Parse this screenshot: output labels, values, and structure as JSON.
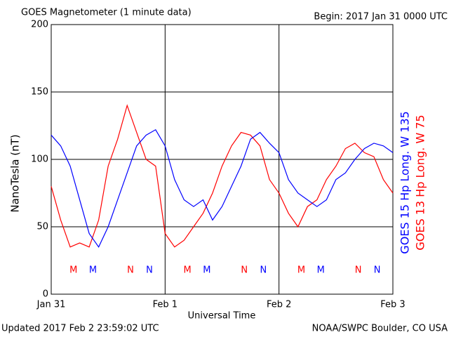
{
  "chart_data": {
    "type": "line",
    "title": "GOES Magnetometer (1 minute data)",
    "subtitle": "Begin:  2017 Jan 31 0000 UTC",
    "y_label": "NanoTesla (nT)",
    "x_label": "Universal Time",
    "footer_left": "Updated 2017 Feb  2 23:59:02 UTC",
    "footer_right": "NOAA/SWPC Boulder, CO USA",
    "x": [
      0,
      2,
      4,
      6,
      8,
      10,
      12,
      14,
      16,
      18,
      20,
      22,
      24,
      26,
      28,
      30,
      32,
      34,
      36,
      38,
      40,
      42,
      44,
      46,
      48,
      50,
      52,
      54,
      56,
      58,
      60,
      62,
      64,
      66,
      68,
      70,
      72
    ],
    "series": [
      {
        "name": "GOES 13 Hp  Long. W 75",
        "color": "#ff0000",
        "values": [
          80,
          55,
          35,
          38,
          35,
          55,
          95,
          115,
          140,
          120,
          100,
          95,
          45,
          35,
          40,
          50,
          60,
          75,
          95,
          110,
          120,
          118,
          110,
          85,
          75,
          60,
          50,
          65,
          70,
          85,
          95,
          108,
          112,
          105,
          102,
          85,
          75
        ]
      },
      {
        "name": "GOES 15 Hp  Long. W 135",
        "color": "#0000ff",
        "values": [
          118,
          110,
          95,
          70,
          45,
          35,
          50,
          70,
          90,
          110,
          118,
          122,
          110,
          85,
          70,
          65,
          70,
          55,
          65,
          80,
          95,
          115,
          120,
          112,
          105,
          85,
          75,
          70,
          65,
          70,
          85,
          90,
          100,
          108,
          112,
          110,
          105
        ]
      }
    ],
    "markers": [
      {
        "label": "M",
        "series": 0,
        "x": 4.7
      },
      {
        "label": "M",
        "series": 1,
        "x": 8.8
      },
      {
        "label": "N",
        "series": 0,
        "x": 16.7
      },
      {
        "label": "N",
        "series": 1,
        "x": 20.7
      },
      {
        "label": "M",
        "series": 0,
        "x": 28.7
      },
      {
        "label": "M",
        "series": 1,
        "x": 32.8
      },
      {
        "label": "N",
        "series": 0,
        "x": 40.7
      },
      {
        "label": "N",
        "series": 1,
        "x": 44.7
      },
      {
        "label": "M",
        "series": 0,
        "x": 52.7
      },
      {
        "label": "M",
        "series": 1,
        "x": 56.8
      },
      {
        "label": "N",
        "series": 0,
        "x": 64.7
      },
      {
        "label": "N",
        "series": 1,
        "x": 68.7
      }
    ],
    "xlim": [
      0,
      72
    ],
    "xticks": [
      {
        "value": 0,
        "label": "Jan 31"
      },
      {
        "value": 24,
        "label": "Feb 1"
      },
      {
        "value": 48,
        "label": "Feb 2"
      },
      {
        "value": 72,
        "label": "Feb 3"
      }
    ],
    "ylim": [
      0,
      200
    ],
    "yticks": [
      0,
      50,
      100,
      150,
      200
    ],
    "grid": true
  }
}
